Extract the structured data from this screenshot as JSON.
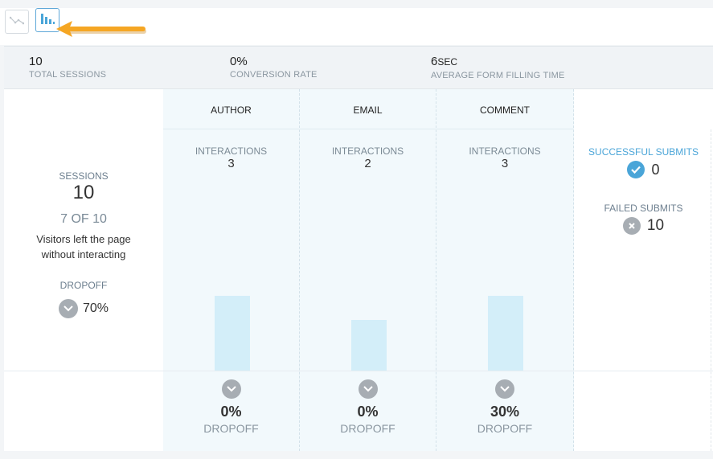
{
  "toolbar": {
    "line_view_icon": "line-chart-icon",
    "bar_view_icon": "bar-chart-icon",
    "annotation_arrow_color": "#f5a623"
  },
  "stats": {
    "total_sessions": {
      "value": "10",
      "label": "TOTAL SESSIONS"
    },
    "conversion_rate": {
      "value": "0%",
      "label": "CONVERSION RATE"
    },
    "avg_time": {
      "value": "6",
      "unit": "SEC",
      "label": "AVERAGE FORM FILLING TIME"
    }
  },
  "left": {
    "sessions_label": "SESSIONS",
    "sessions_value": "10",
    "ratio": "7 OF 10",
    "note_line1": "Visitors left the page",
    "note_line2": "without interacting",
    "dropoff_label": "DROPOFF",
    "dropoff_value": "70%"
  },
  "fields": [
    {
      "name": "AUTHOR",
      "interactions_label": "INTERACTIONS",
      "interactions": "3",
      "dropoff": "0%",
      "dropoff_label": "DROPOFF"
    },
    {
      "name": "EMAIL",
      "interactions_label": "INTERACTIONS",
      "interactions": "2",
      "dropoff": "0%",
      "dropoff_label": "DROPOFF"
    },
    {
      "name": "COMMENT",
      "interactions_label": "INTERACTIONS",
      "interactions": "3",
      "dropoff": "30%",
      "dropoff_label": "DROPOFF"
    }
  ],
  "right": {
    "success_label": "SUCCESSFUL SUBMITS",
    "success_value": "0",
    "failed_label": "FAILED SUBMITS",
    "failed_value": "10"
  },
  "colors": {
    "accent": "#4aa5d8",
    "bar": "#d3eef9",
    "neutral_icon": "#a7adb3"
  }
}
